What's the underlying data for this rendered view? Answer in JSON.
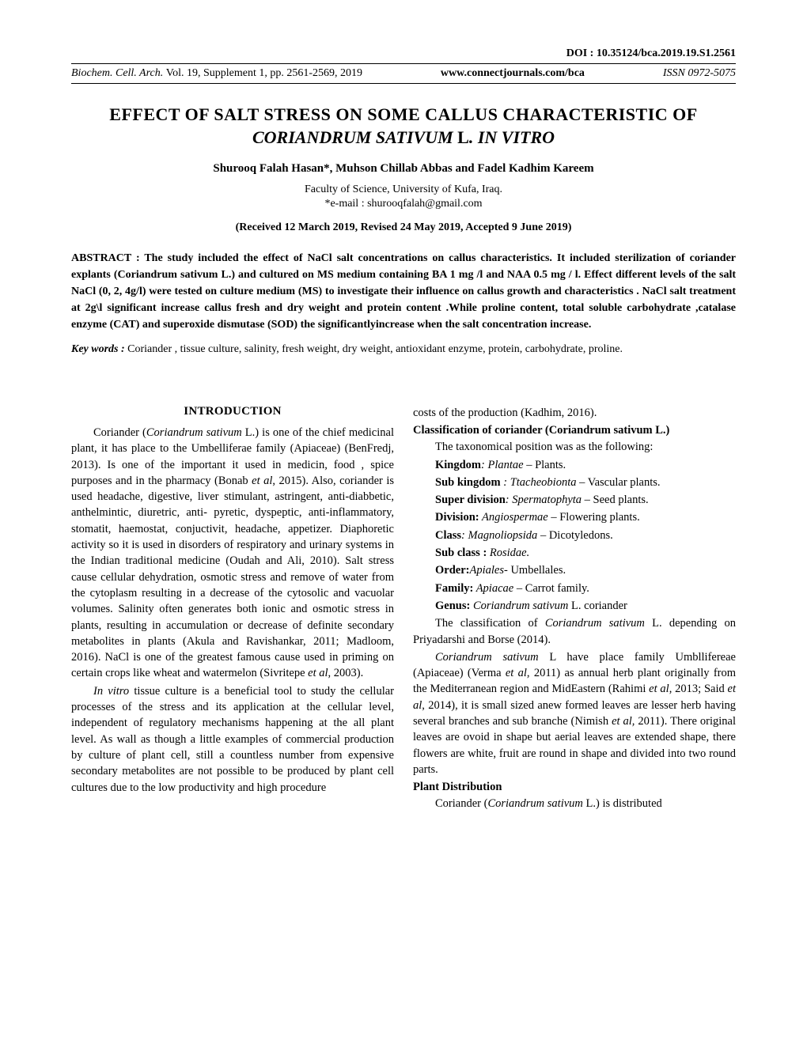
{
  "doi": "DOI : 10.35124/bca.2019.19.S1.2561",
  "header": {
    "journal": "Biochem. Cell. Arch.",
    "volinfo": "Vol. 19, Supplement 1, pp. 2561-2569, 2019",
    "website": "www.connectjournals.com/bca",
    "issn": "ISSN 0972-5075"
  },
  "title_line1": "EFFECT OF SALT STRESS ON SOME CALLUS CHARACTERISTIC OF",
  "title_species": "CORIANDRUM SATIVUM",
  "title_l": " L",
  "title_invitro": ". IN VITRO",
  "authors": "Shurooq Falah Hasan*, Muhson Chillab Abbas and Fadel Kadhim Kareem",
  "affiliation": "Faculty of Science, University of Kufa, Iraq.",
  "email": "*e-mail : shurooqfalah@gmail.com",
  "dates": "(Received 12 March 2019, Revised 24 May 2019, Accepted 9 June 2019)",
  "abstract_label": "ABSTRACT : ",
  "abstract_text": "The study included the effect of NaCl salt concentrations on callus characteristics. It included sterilization of coriander explants (Coriandrum sativum L.) and cultured on MS medium containing BA 1 mg /l and NAA 0.5 mg / l. Effect different levels of the salt NaCl (0, 2, 4g/l) were tested on culture medium (MS) to investigate their influence on callus growth and characteristics . NaCl salt treatment at 2g\\l significant increase callus fresh and dry weight and protein content .While proline content, total soluble carbohydrate ,catalase enzyme (CAT) and superoxide dismutase (SOD) the significantlyincrease when the salt concentration increase.",
  "keywords_label": "Key words :",
  "keywords_text": " Coriander , tissue culture, salinity, fresh weight, dry weight, antioxidant enzyme, protein, carbohydrate, proline.",
  "introduction_heading": "INTRODUCTION",
  "col1": {
    "p1a": "Coriander (",
    "p1b": "Coriandrum sativum",
    "p1c": " L.) is one of the chief medicinal plant, it has place to the Umbelliferae family (Apiaceae) (BenFredj, 2013). Is one of the important it used in medicin, food , spice purposes and in the pharmacy (Bonab ",
    "p1d": "et al",
    "p1e": ", 2015). Also, coriander is used headache, digestive, liver stimulant, astringent, anti-diabbetic, anthelmintic, diuretric, anti- pyretic, dyspeptic, anti-inflammatory, stomatit, haemostat, conjuctivit, headache, appetizer. Diaphoretic activity so it is used in disorders of respiratory and urinary systems in the Indian traditional medicine (Oudah and Ali, 2010). Salt stress cause cellular dehydration, osmotic stress and remove of water from the cytoplasm resulting in a decrease of the cytosolic and vacuolar volumes. Salinity often generates both ionic and osmotic stress in plants, resulting in accumulation or decrease of definite secondary metabolites in plants (Akula and Ravishankar, 2011; Madloom, 2016). NaCl is one of the greatest famous cause used in priming on certain crops like wheat and watermelon (Sivritepe ",
    "p1f": "et al",
    "p1g": ", 2003).",
    "p2a": "In vitro",
    "p2b": " tissue culture is a beneficial tool to study the cellular processes of the stress and its application at the cellular level, independent of regulatory mechanisms happening at the all plant level. As wall as though a little examples of commercial production by culture of plant cell, still a countless number from expensive secondary metabolites are not possible to be produced by plant cell cultures due to the low productivity and high procedure"
  },
  "col2": {
    "p1": "costs of the production (Kadhim, 2016).",
    "classification_label": "Classification of coriander (",
    "classification_species": "Coriandrum sativum",
    "classification_end": " L.)",
    "tax_intro": "The taxonomical position was as the following:",
    "tax": {
      "kingdom_l": "Kingdom",
      "kingdom_v": ": Plantae",
      "kingdom_t": " – Plants.",
      "subkingdom_l": "Sub kingdom",
      "subkingdom_v": " : Ttacheobionta",
      "subkingdom_t": " – Vascular plants.",
      "superdiv_l": "Super division",
      "superdiv_v": ": Spermatophyta",
      "superdiv_t": " – Seed plants.",
      "division_l": "Division:",
      "division_v": " Angiospermae",
      "division_t": " – Flowering plants.",
      "class_l": "Class",
      "class_v": ": Magnoliopsida",
      "class_t": " – Dicotyledons.",
      "subclass_l": "Sub class :",
      "subclass_v": " Rosidae.",
      "order_l": "Order:",
      "order_v": "Apiales",
      "order_t": "- Umbellales.",
      "family_l": "Family:",
      "family_v": " Apiacae",
      "family_t": " – Carrot family.",
      "genus_l": "Genus:",
      "genus_v": " Coriandrum sativum",
      "genus_t": " L. coriander"
    },
    "p2a": "The classification of ",
    "p2b": "Coriandrum sativum",
    "p2c": " L. depending on Priyadarshi and Borse (2014).",
    "p3a": "Coriandrum sativum",
    "p3b": " L have place family Umbllifereae  (Apiaceae) (Verma ",
    "p3c": "et al",
    "p3d": ", 2011) as annual herb plant originally from  the Mediterranean region and MidEastern (Rahimi ",
    "p3e": "et al",
    "p3f": ", 2013; Said ",
    "p3g": "et al",
    "p3h": ", 2014), it is small sized anew formed leaves are lesser herb having several branches and sub branche (Nimish ",
    "p3i": "et al,",
    "p3j": " 2011). There original leaves are ovoid in shape but aerial leaves are extended shape, there flowers are white, fruit are round in shape and divided into two round parts.",
    "dist_heading": "Plant Distribution",
    "p4a": "Coriander (",
    "p4b": "Coriandrum sativum",
    "p4c": " L.) is distributed"
  }
}
